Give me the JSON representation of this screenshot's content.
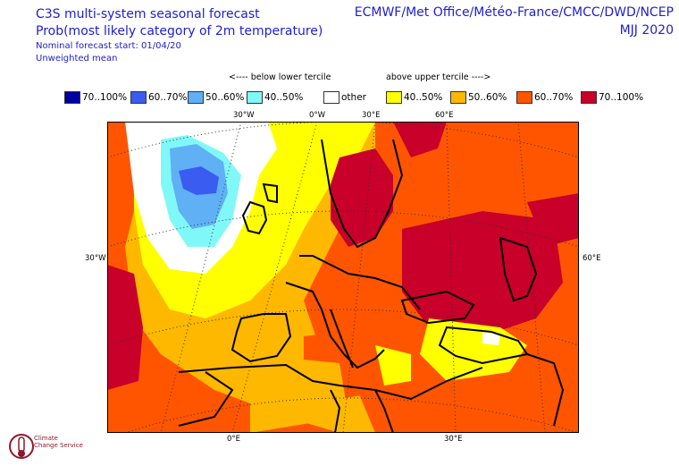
{
  "header": {
    "title_line1": "C3S multi-system seasonal forecast",
    "title_line2": "Prob(most likely category of 2m temperature)",
    "nominal_start": "Nominal forecast start: 01/04/20",
    "mean_type": "Unweighted mean",
    "centres": "ECMWF/Met Office/Météo-France/CMCC/DWD/NCEP",
    "season": "MJJ 2020"
  },
  "legend": {
    "below_heading": "<---- below lower tercile",
    "above_heading": "above upper tercile ---->",
    "items": [
      {
        "label": "70..100%",
        "color": "#0000a0"
      },
      {
        "label": "60..70%",
        "color": "#3a5cf0"
      },
      {
        "label": "50..60%",
        "color": "#5fb0f5"
      },
      {
        "label": "40..50%",
        "color": "#80f8f8"
      },
      {
        "label": "other",
        "color": "#ffffff"
      },
      {
        "label": "40..50%",
        "color": "#ffff00"
      },
      {
        "label": "50..60%",
        "color": "#ffb800"
      },
      {
        "label": "60..70%",
        "color": "#ff5500"
      },
      {
        "label": "70..100%",
        "color": "#c8002a"
      }
    ]
  },
  "map": {
    "top_lon_labels": [
      "30°W",
      "0°W",
      "30°E",
      "60°E"
    ],
    "left_lat_label": "30°W",
    "right_lat_label": "60°E",
    "bottom_lon_labels": [
      "0°E",
      "30°E"
    ]
  },
  "logo": {
    "line1": "Climate",
    "line2": "Change Service"
  }
}
